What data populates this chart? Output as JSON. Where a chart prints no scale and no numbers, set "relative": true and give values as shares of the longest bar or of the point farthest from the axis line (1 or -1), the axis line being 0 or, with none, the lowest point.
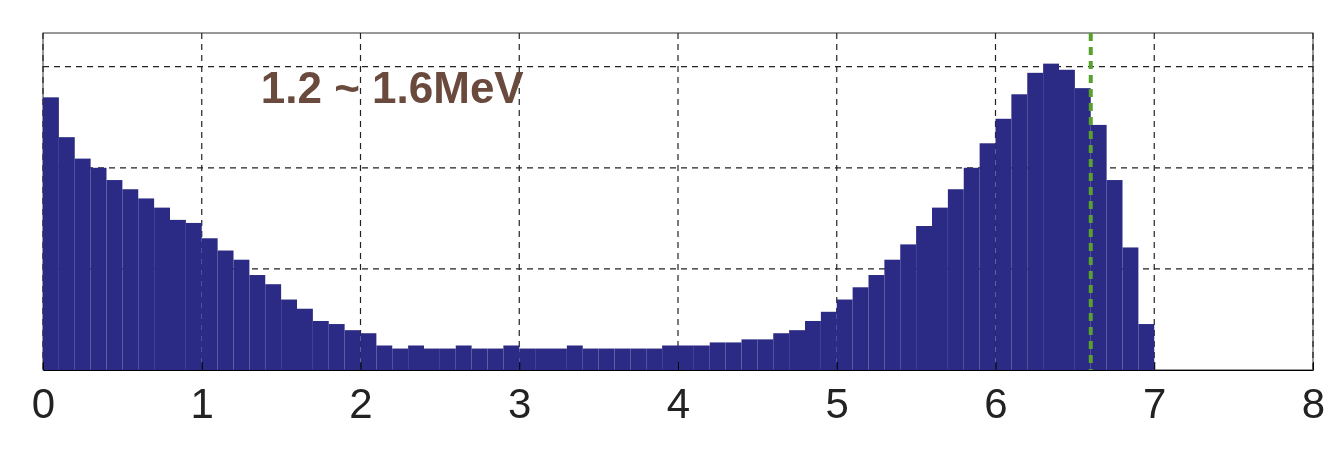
{
  "chart_data": {
    "type": "bar",
    "relative": true,
    "x": [
      0.05,
      0.15,
      0.25,
      0.35,
      0.45,
      0.55,
      0.65,
      0.75,
      0.85,
      0.95,
      1.05,
      1.15,
      1.25,
      1.35,
      1.45,
      1.55,
      1.65,
      1.75,
      1.85,
      1.95,
      2.05,
      2.15,
      2.25,
      2.35,
      2.45,
      2.55,
      2.65,
      2.75,
      2.85,
      2.95,
      3.05,
      3.15,
      3.25,
      3.35,
      3.45,
      3.55,
      3.65,
      3.75,
      3.85,
      3.95,
      4.05,
      4.15,
      4.25,
      4.35,
      4.45,
      4.55,
      4.65,
      4.75,
      4.85,
      4.95,
      5.05,
      5.15,
      5.25,
      5.35,
      5.45,
      5.55,
      5.65,
      5.75,
      5.85,
      5.95,
      6.05,
      6.15,
      6.25,
      6.35,
      6.45,
      6.55,
      6.65,
      6.75,
      6.85,
      6.95
    ],
    "values": [
      0.89,
      0.76,
      0.69,
      0.66,
      0.62,
      0.59,
      0.56,
      0.53,
      0.49,
      0.48,
      0.43,
      0.39,
      0.36,
      0.31,
      0.28,
      0.23,
      0.2,
      0.16,
      0.15,
      0.13,
      0.12,
      0.08,
      0.07,
      0.08,
      0.07,
      0.07,
      0.08,
      0.07,
      0.07,
      0.08,
      0.07,
      0.07,
      0.07,
      0.08,
      0.07,
      0.07,
      0.07,
      0.07,
      0.07,
      0.08,
      0.08,
      0.08,
      0.09,
      0.09,
      0.1,
      0.1,
      0.12,
      0.13,
      0.16,
      0.19,
      0.23,
      0.27,
      0.31,
      0.36,
      0.41,
      0.47,
      0.53,
      0.59,
      0.66,
      0.74,
      0.82,
      0.9,
      0.97,
      1,
      0.98,
      0.92,
      0.8,
      0.62,
      0.4,
      0.15
    ],
    "color": "#2b2a85",
    "xlim": [
      0,
      8
    ],
    "xticks": [
      0,
      1,
      2,
      3,
      4,
      5,
      6,
      7,
      8
    ],
    "grid": true,
    "ref_lines": [
      {
        "axis": "x",
        "value": 6.6,
        "color": "#5aa02c",
        "line_style": "dashed"
      }
    ],
    "annotations": [
      "1.2 ~ 1.6MeV"
    ]
  }
}
